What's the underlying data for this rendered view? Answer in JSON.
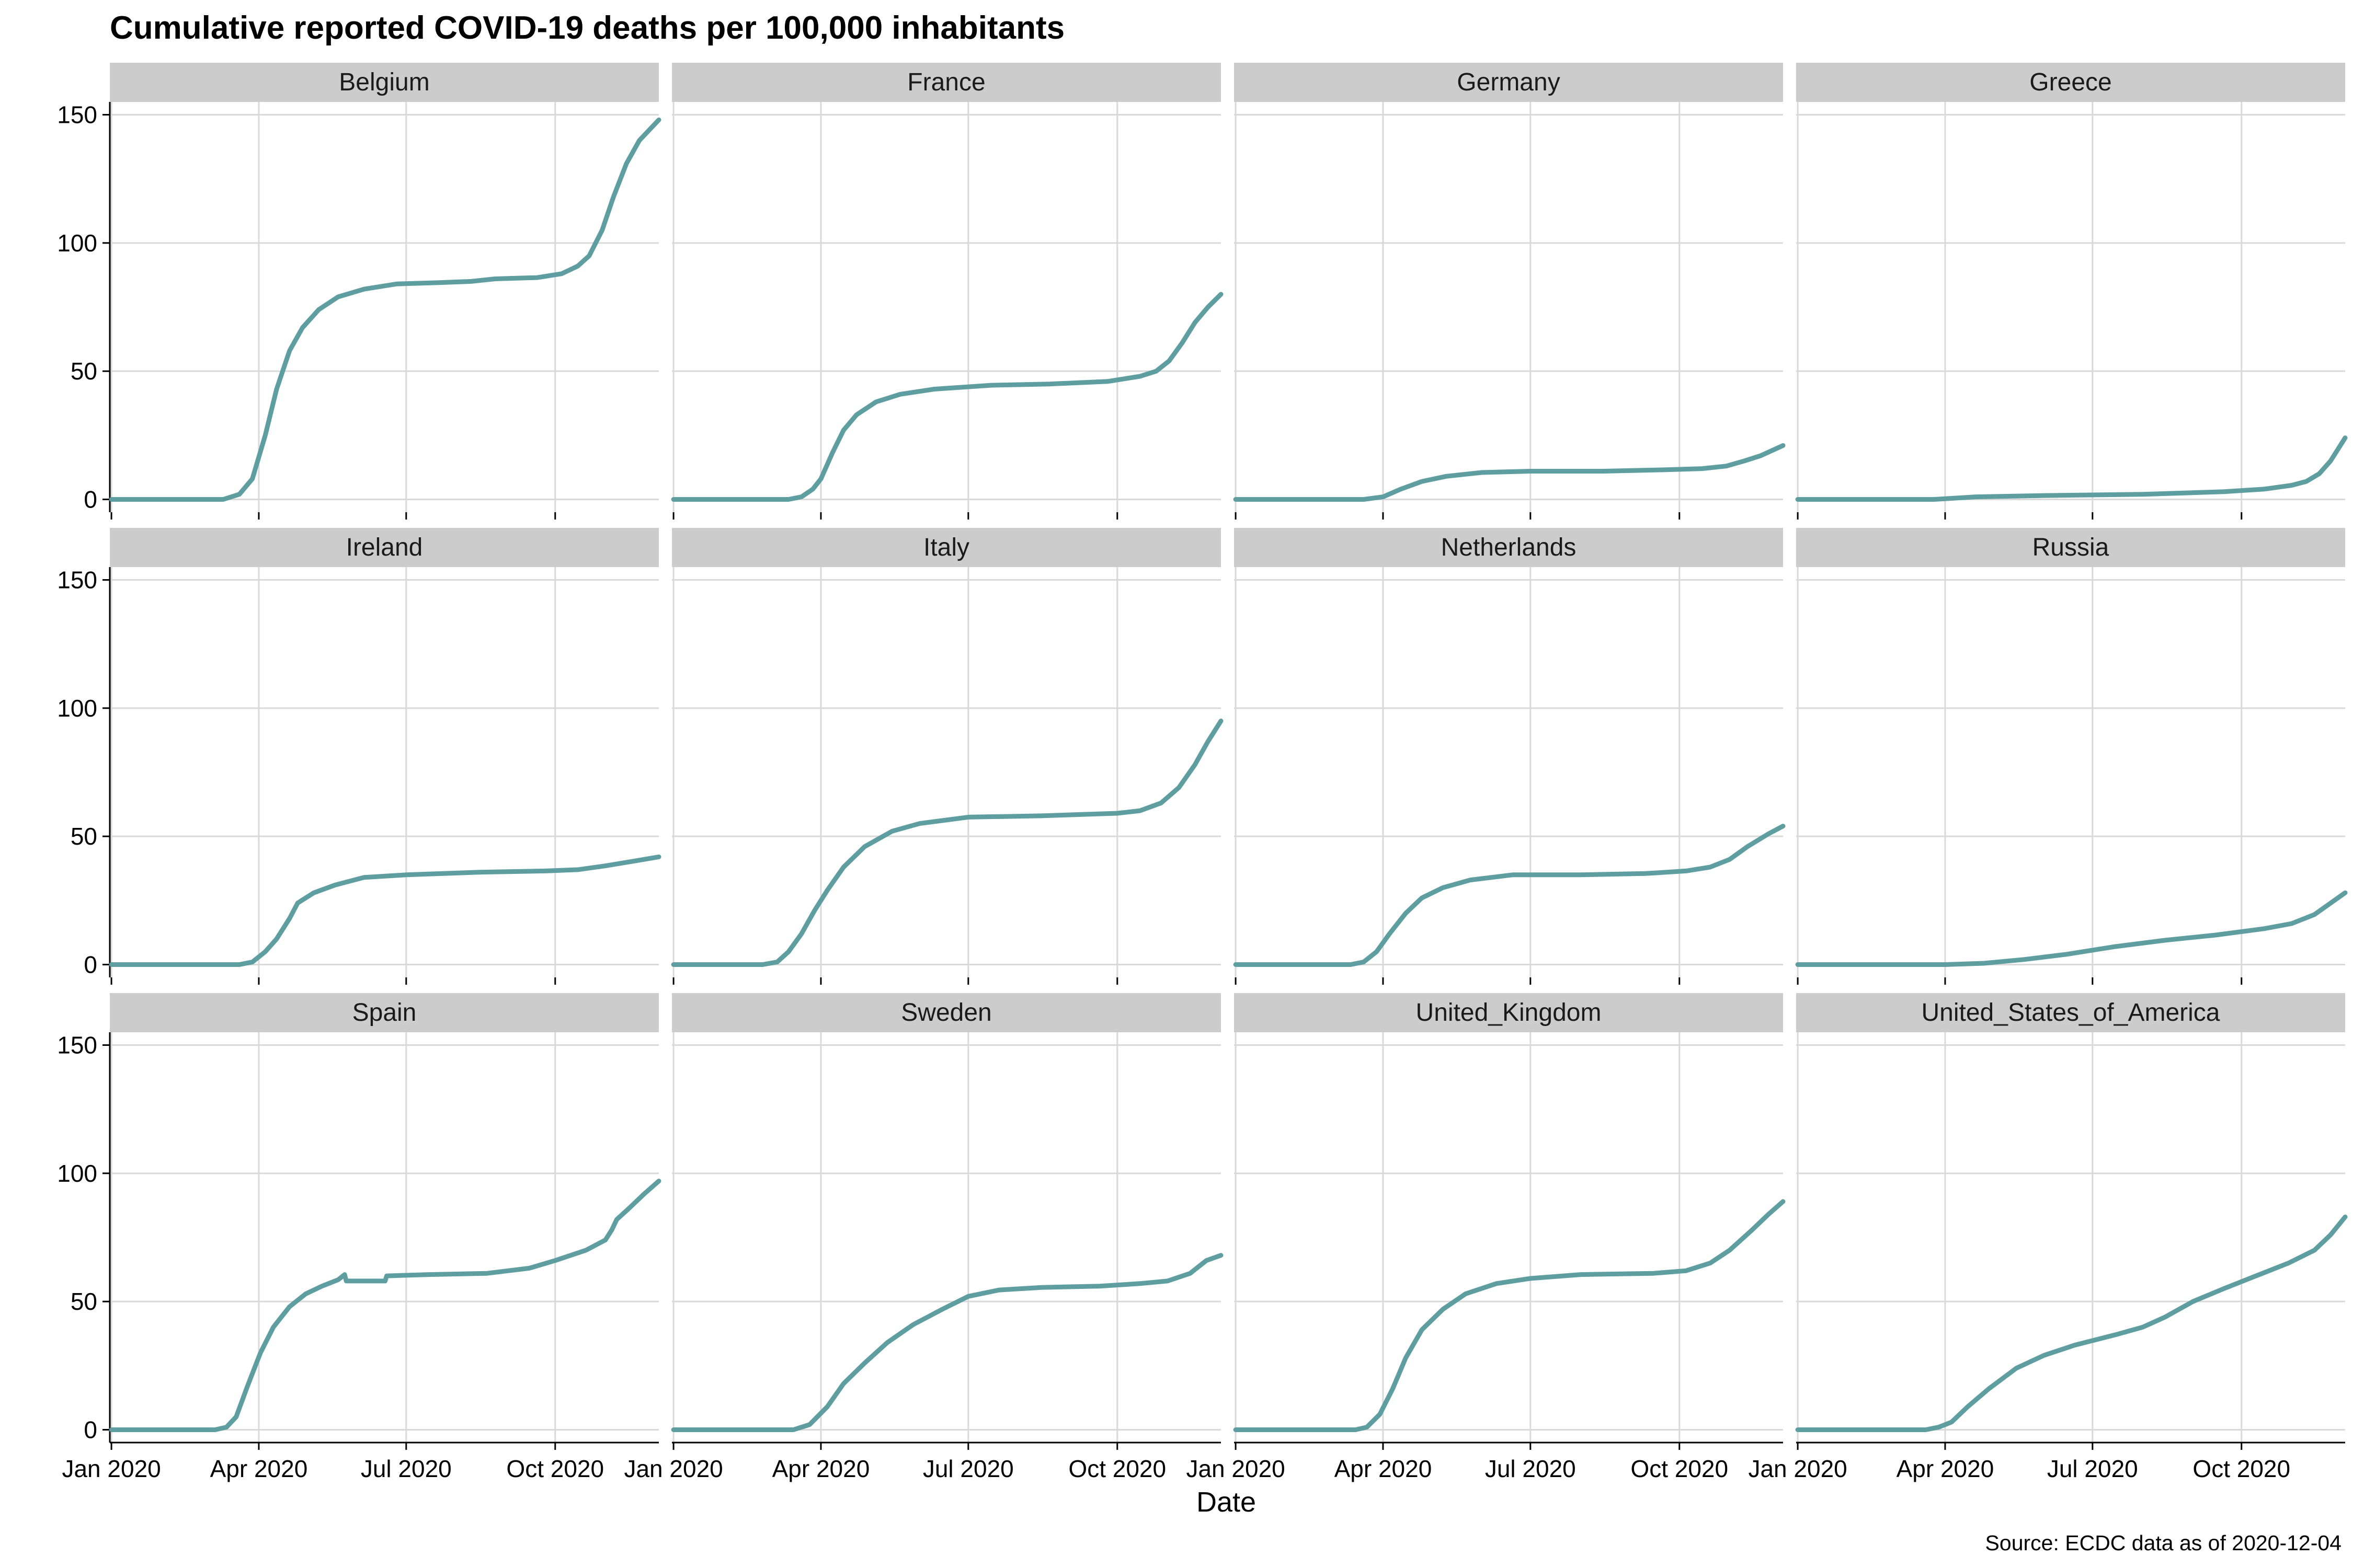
{
  "title": "Cumulative reported COVID-19 deaths per 100,000 inhabitants",
  "caption": "Source: ECDC data as of 2020-12-04",
  "colors": {
    "line": "#5f9ea0",
    "strip": "#cccccc",
    "grid": "#d9d9d9"
  },
  "chart_data": {
    "type": "line",
    "title": "Cumulative reported COVID-19 deaths per 100,000 inhabitants",
    "xlabel": "Date",
    "ylabel": "",
    "xlim": [
      "2019-12-31",
      "2020-12-04"
    ],
    "ylim": [
      -5,
      155
    ],
    "x_ticks": [
      {
        "date": "2020-01-01",
        "label": "Jan 2020"
      },
      {
        "date": "2020-04-01",
        "label": "Apr 2020"
      },
      {
        "date": "2020-07-01",
        "label": "Jul 2020"
      },
      {
        "date": "2020-10-01",
        "label": "Oct 2020"
      }
    ],
    "y_ticks": [
      0,
      50,
      100,
      150
    ],
    "grid": true,
    "facets": [
      {
        "name": "Belgium",
        "points": [
          [
            "2020-01-01",
            0
          ],
          [
            "2020-03-10",
            0
          ],
          [
            "2020-03-20",
            2
          ],
          [
            "2020-03-28",
            8
          ],
          [
            "2020-04-05",
            25
          ],
          [
            "2020-04-12",
            43
          ],
          [
            "2020-04-20",
            58
          ],
          [
            "2020-04-28",
            67
          ],
          [
            "2020-05-08",
            74
          ],
          [
            "2020-05-20",
            79
          ],
          [
            "2020-06-05",
            82
          ],
          [
            "2020-06-25",
            84
          ],
          [
            "2020-07-20",
            84.5
          ],
          [
            "2020-08-10",
            85
          ],
          [
            "2020-08-25",
            86
          ],
          [
            "2020-09-20",
            86.5
          ],
          [
            "2020-10-05",
            88
          ],
          [
            "2020-10-15",
            91
          ],
          [
            "2020-10-22",
            95
          ],
          [
            "2020-10-30",
            105
          ],
          [
            "2020-11-06",
            118
          ],
          [
            "2020-11-14",
            131
          ],
          [
            "2020-11-22",
            140
          ],
          [
            "2020-12-04",
            148
          ]
        ]
      },
      {
        "name": "France",
        "points": [
          [
            "2020-01-01",
            0
          ],
          [
            "2020-03-12",
            0
          ],
          [
            "2020-03-20",
            1
          ],
          [
            "2020-03-27",
            4
          ],
          [
            "2020-04-01",
            8
          ],
          [
            "2020-04-08",
            18
          ],
          [
            "2020-04-15",
            27
          ],
          [
            "2020-04-23",
            33
          ],
          [
            "2020-05-05",
            38
          ],
          [
            "2020-05-20",
            41
          ],
          [
            "2020-06-10",
            43
          ],
          [
            "2020-07-15",
            44.5
          ],
          [
            "2020-08-20",
            45
          ],
          [
            "2020-09-25",
            46
          ],
          [
            "2020-10-15",
            48
          ],
          [
            "2020-10-25",
            50
          ],
          [
            "2020-11-02",
            54
          ],
          [
            "2020-11-10",
            61
          ],
          [
            "2020-11-18",
            69
          ],
          [
            "2020-11-26",
            75
          ],
          [
            "2020-12-04",
            80
          ]
        ]
      },
      {
        "name": "Germany",
        "points": [
          [
            "2020-01-01",
            0
          ],
          [
            "2020-03-20",
            0
          ],
          [
            "2020-04-01",
            1
          ],
          [
            "2020-04-12",
            4
          ],
          [
            "2020-04-25",
            7
          ],
          [
            "2020-05-10",
            9
          ],
          [
            "2020-06-01",
            10.5
          ],
          [
            "2020-07-01",
            11
          ],
          [
            "2020-08-15",
            11
          ],
          [
            "2020-09-20",
            11.5
          ],
          [
            "2020-10-15",
            12
          ],
          [
            "2020-10-30",
            13
          ],
          [
            "2020-11-10",
            15
          ],
          [
            "2020-11-20",
            17
          ],
          [
            "2020-12-04",
            21
          ]
        ]
      },
      {
        "name": "Greece",
        "points": [
          [
            "2020-01-01",
            0
          ],
          [
            "2020-03-25",
            0
          ],
          [
            "2020-04-20",
            1
          ],
          [
            "2020-06-01",
            1.5
          ],
          [
            "2020-08-01",
            2
          ],
          [
            "2020-09-20",
            3
          ],
          [
            "2020-10-15",
            4
          ],
          [
            "2020-11-01",
            5.5
          ],
          [
            "2020-11-10",
            7
          ],
          [
            "2020-11-18",
            10
          ],
          [
            "2020-11-25",
            15
          ],
          [
            "2020-12-04",
            24
          ]
        ]
      },
      {
        "name": "Ireland",
        "points": [
          [
            "2020-01-01",
            0
          ],
          [
            "2020-03-20",
            0
          ],
          [
            "2020-03-28",
            1
          ],
          [
            "2020-04-05",
            5
          ],
          [
            "2020-04-12",
            10
          ],
          [
            "2020-04-20",
            18
          ],
          [
            "2020-04-25",
            24
          ],
          [
            "2020-05-05",
            28
          ],
          [
            "2020-05-18",
            31
          ],
          [
            "2020-06-05",
            34
          ],
          [
            "2020-07-01",
            35
          ],
          [
            "2020-08-15",
            36
          ],
          [
            "2020-09-25",
            36.5
          ],
          [
            "2020-10-15",
            37
          ],
          [
            "2020-11-01",
            38.5
          ],
          [
            "2020-11-20",
            40.5
          ],
          [
            "2020-12-04",
            42
          ]
        ]
      },
      {
        "name": "Italy",
        "points": [
          [
            "2020-01-01",
            0
          ],
          [
            "2020-02-25",
            0
          ],
          [
            "2020-03-05",
            1
          ],
          [
            "2020-03-12",
            5
          ],
          [
            "2020-03-20",
            12
          ],
          [
            "2020-03-28",
            21
          ],
          [
            "2020-04-05",
            29
          ],
          [
            "2020-04-15",
            38
          ],
          [
            "2020-04-28",
            46
          ],
          [
            "2020-05-15",
            52
          ],
          [
            "2020-06-01",
            55
          ],
          [
            "2020-07-01",
            57.5
          ],
          [
            "2020-08-15",
            58
          ],
          [
            "2020-10-01",
            59
          ],
          [
            "2020-10-15",
            60
          ],
          [
            "2020-10-28",
            63
          ],
          [
            "2020-11-08",
            69
          ],
          [
            "2020-11-18",
            78
          ],
          [
            "2020-11-26",
            87
          ],
          [
            "2020-12-04",
            95
          ]
        ]
      },
      {
        "name": "Netherlands",
        "points": [
          [
            "2020-01-01",
            0
          ],
          [
            "2020-03-12",
            0
          ],
          [
            "2020-03-20",
            1
          ],
          [
            "2020-03-28",
            5
          ],
          [
            "2020-04-05",
            12
          ],
          [
            "2020-04-15",
            20
          ],
          [
            "2020-04-25",
            26
          ],
          [
            "2020-05-08",
            30
          ],
          [
            "2020-05-25",
            33
          ],
          [
            "2020-06-20",
            35
          ],
          [
            "2020-08-01",
            35
          ],
          [
            "2020-09-10",
            35.5
          ],
          [
            "2020-10-05",
            36.5
          ],
          [
            "2020-10-20",
            38
          ],
          [
            "2020-11-01",
            41
          ],
          [
            "2020-11-12",
            46
          ],
          [
            "2020-11-25",
            51
          ],
          [
            "2020-12-04",
            54
          ]
        ]
      },
      {
        "name": "Russia",
        "points": [
          [
            "2020-01-01",
            0
          ],
          [
            "2020-04-01",
            0
          ],
          [
            "2020-04-25",
            0.5
          ],
          [
            "2020-05-20",
            2
          ],
          [
            "2020-06-15",
            4
          ],
          [
            "2020-07-15",
            7
          ],
          [
            "2020-08-15",
            9.5
          ],
          [
            "2020-09-15",
            11.5
          ],
          [
            "2020-10-15",
            14
          ],
          [
            "2020-11-01",
            16
          ],
          [
            "2020-11-15",
            19.5
          ],
          [
            "2020-12-04",
            28
          ]
        ]
      },
      {
        "name": "Spain",
        "points": [
          [
            "2020-01-01",
            0
          ],
          [
            "2020-03-05",
            0
          ],
          [
            "2020-03-12",
            1
          ],
          [
            "2020-03-18",
            5
          ],
          [
            "2020-03-25",
            17
          ],
          [
            "2020-04-02",
            30
          ],
          [
            "2020-04-10",
            40
          ],
          [
            "2020-04-20",
            48
          ],
          [
            "2020-04-30",
            53
          ],
          [
            "2020-05-10",
            56
          ],
          [
            "2020-05-20",
            58.5
          ],
          [
            "2020-05-24",
            60.5
          ],
          [
            "2020-05-25",
            58
          ],
          [
            "2020-06-15",
            58
          ],
          [
            "2020-06-18",
            58
          ],
          [
            "2020-06-19",
            60
          ],
          [
            "2020-07-15",
            60.5
          ],
          [
            "2020-08-20",
            61
          ],
          [
            "2020-09-15",
            63
          ],
          [
            "2020-10-01",
            66
          ],
          [
            "2020-10-20",
            70
          ],
          [
            "2020-11-01",
            74
          ],
          [
            "2020-11-05",
            78
          ],
          [
            "2020-11-08",
            82
          ],
          [
            "2020-11-15",
            86
          ],
          [
            "2020-11-25",
            92
          ],
          [
            "2020-12-04",
            97
          ]
        ]
      },
      {
        "name": "Sweden",
        "points": [
          [
            "2020-01-01",
            0
          ],
          [
            "2020-03-15",
            0
          ],
          [
            "2020-03-25",
            2
          ],
          [
            "2020-04-05",
            9
          ],
          [
            "2020-04-15",
            18
          ],
          [
            "2020-04-28",
            26
          ],
          [
            "2020-05-12",
            34
          ],
          [
            "2020-05-28",
            41
          ],
          [
            "2020-06-15",
            47
          ],
          [
            "2020-07-01",
            52
          ],
          [
            "2020-07-20",
            54.5
          ],
          [
            "2020-08-15",
            55.5
          ],
          [
            "2020-09-20",
            56
          ],
          [
            "2020-10-15",
            57
          ],
          [
            "2020-11-01",
            58
          ],
          [
            "2020-11-15",
            61
          ],
          [
            "2020-11-25",
            66
          ],
          [
            "2020-12-04",
            68
          ]
        ]
      },
      {
        "name": "United_Kingdom",
        "points": [
          [
            "2020-01-01",
            0
          ],
          [
            "2020-03-15",
            0
          ],
          [
            "2020-03-22",
            1
          ],
          [
            "2020-03-30",
            6
          ],
          [
            "2020-04-07",
            16
          ],
          [
            "2020-04-15",
            28
          ],
          [
            "2020-04-25",
            39
          ],
          [
            "2020-05-08",
            47
          ],
          [
            "2020-05-22",
            53
          ],
          [
            "2020-06-10",
            57
          ],
          [
            "2020-07-01",
            59
          ],
          [
            "2020-08-01",
            60.5
          ],
          [
            "2020-09-15",
            61
          ],
          [
            "2020-10-05",
            62
          ],
          [
            "2020-10-20",
            65
          ],
          [
            "2020-11-01",
            70
          ],
          [
            "2020-11-15",
            78
          ],
          [
            "2020-11-25",
            84
          ],
          [
            "2020-12-04",
            89
          ]
        ]
      },
      {
        "name": "United_States_of_America",
        "points": [
          [
            "2020-01-01",
            0
          ],
          [
            "2020-03-20",
            0
          ],
          [
            "2020-03-28",
            1
          ],
          [
            "2020-04-05",
            3
          ],
          [
            "2020-04-15",
            9
          ],
          [
            "2020-04-28",
            16
          ],
          [
            "2020-05-15",
            24
          ],
          [
            "2020-06-01",
            29
          ],
          [
            "2020-06-20",
            33
          ],
          [
            "2020-07-15",
            37
          ],
          [
            "2020-08-01",
            40
          ],
          [
            "2020-08-15",
            44
          ],
          [
            "2020-09-01",
            50
          ],
          [
            "2020-09-20",
            55
          ],
          [
            "2020-10-10",
            60
          ],
          [
            "2020-10-30",
            65
          ],
          [
            "2020-11-15",
            70
          ],
          [
            "2020-11-25",
            76
          ],
          [
            "2020-12-04",
            83
          ]
        ]
      }
    ]
  }
}
